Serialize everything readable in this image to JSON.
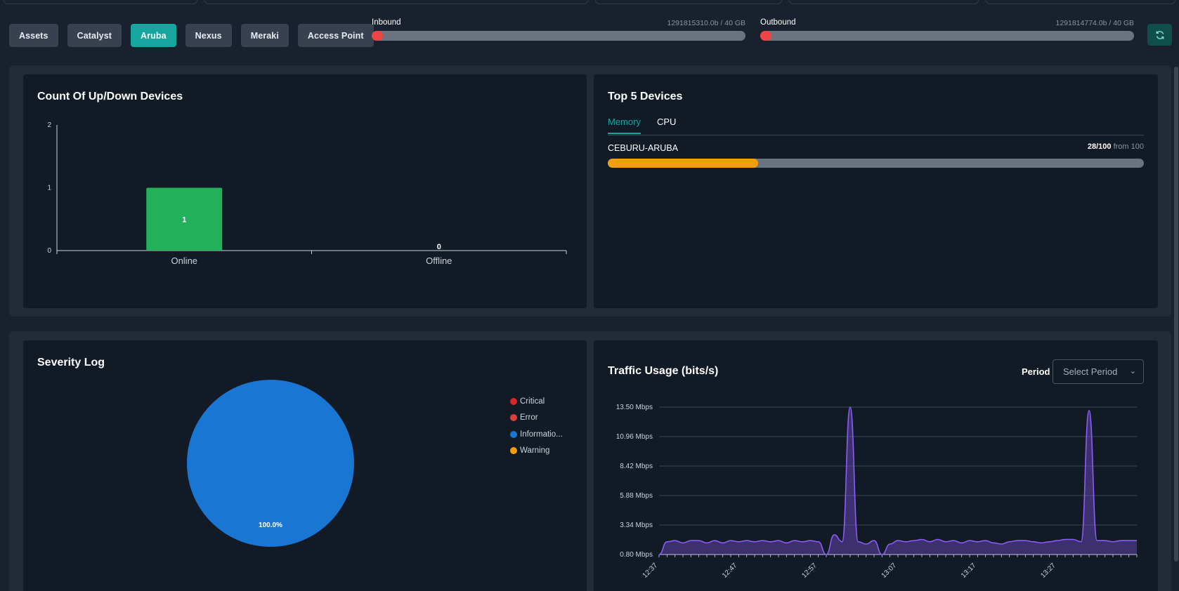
{
  "toolbar": {
    "buttons": [
      {
        "label": "Assets",
        "active": false
      },
      {
        "label": "Catalyst",
        "active": false
      },
      {
        "label": "Aruba",
        "active": true
      },
      {
        "label": "Nexus",
        "active": false
      },
      {
        "label": "Meraki",
        "active": false
      },
      {
        "label": "Access Point",
        "active": false
      }
    ]
  },
  "bandwidth": {
    "inbound": {
      "label": "Inbound",
      "value": "1291815310.0b / 40 GB",
      "fill_fraction": 0.03
    },
    "outbound": {
      "label": "Outbound",
      "value": "1291814774.0b / 40 GB",
      "fill_fraction": 0.03
    }
  },
  "refresh": {
    "icon": "refresh-icon"
  },
  "updown": {
    "title": "Count Of Up/Down Devices"
  },
  "top5": {
    "title": "Top 5 Devices",
    "tabs": [
      {
        "label": "Memory",
        "active": true
      },
      {
        "label": "CPU",
        "active": false
      }
    ],
    "devices": [
      {
        "name": "CEBURU-ARUBA",
        "score": "28/100",
        "from": "from 100",
        "value": 28,
        "max": 100
      }
    ],
    "colors": {
      "fill": "#f59e0b"
    }
  },
  "severity": {
    "title": "Severity Log",
    "legend": [
      {
        "label": "Critical",
        "color": "#dc2626"
      },
      {
        "label": "Error",
        "color": "#e03e3e"
      },
      {
        "label": "Informatio...",
        "color": "#1976d2"
      },
      {
        "label": "Warning",
        "color": "#f59e0b"
      }
    ]
  },
  "traffic": {
    "title": "Traffic Usage (bits/s)",
    "period_label": "Period",
    "period_placeholder": "Select Period"
  },
  "chart_data": [
    {
      "type": "bar",
      "title": "Count Of Up/Down Devices",
      "categories": [
        "Online",
        "Offline"
      ],
      "values": [
        1,
        0
      ],
      "data_labels": [
        "1",
        "0"
      ],
      "ylim": [
        0,
        2
      ],
      "yticks": [
        "0",
        "1",
        "2"
      ],
      "colors": [
        "#22b05a",
        "#22b05a"
      ]
    },
    {
      "type": "pie",
      "title": "Severity Log",
      "labels": [
        "Critical",
        "Error",
        "Informatio...",
        "Warning"
      ],
      "values": [
        0,
        0,
        100,
        0
      ],
      "slice_label": "100.0%",
      "colors": [
        "#dc2626",
        "#e03e3e",
        "#1976d2",
        "#f59e0b"
      ]
    },
    {
      "type": "area",
      "title": "Traffic Usage (bits/s)",
      "ylabel": "",
      "ylim": [
        0.8,
        13.5
      ],
      "yticks": [
        "0.80 Mbps",
        "3.34 Mbps",
        "5.88 Mbps",
        "8.42 Mbps",
        "10.96 Mbps",
        "13.50 Mbps"
      ],
      "xticks": [
        "12:37",
        "12:47",
        "12:57",
        "13:07",
        "13:17",
        "13:27"
      ],
      "x_minutes_range": [
        0,
        60
      ],
      "x": [
        0,
        1,
        2,
        3,
        4,
        5,
        6,
        7,
        8,
        9,
        10,
        11,
        12,
        13,
        14,
        15,
        16,
        17,
        18,
        19,
        20,
        21,
        22,
        23,
        24,
        25,
        26,
        27,
        28,
        29,
        30,
        31,
        32,
        33,
        34,
        35,
        36,
        37,
        38,
        39,
        40,
        41,
        42,
        43,
        44,
        45,
        46,
        47,
        48,
        49,
        50,
        51,
        52,
        53,
        54,
        55,
        56,
        57,
        58,
        59,
        60
      ],
      "values": [
        0.8,
        1.9,
        2.0,
        1.8,
        2.0,
        2.0,
        1.8,
        2.0,
        1.8,
        2.0,
        1.9,
        2.0,
        1.9,
        2.0,
        1.9,
        2.0,
        1.8,
        2.0,
        1.9,
        2.0,
        1.9,
        0.8,
        2.5,
        1.9,
        13.5,
        1.9,
        1.7,
        2.0,
        0.8,
        1.7,
        2.0,
        1.9,
        2.0,
        2.1,
        1.9,
        2.1,
        1.9,
        2.0,
        1.8,
        2.0,
        1.9,
        2.0,
        1.8,
        1.7,
        1.9,
        2.0,
        2.0,
        1.9,
        1.8,
        1.9,
        2.0,
        2.1,
        2.1,
        1.9,
        13.2,
        2.0,
        2.0,
        1.9,
        2.0,
        2.0,
        2.0
      ],
      "series_color": "#8b5cf6"
    }
  ]
}
